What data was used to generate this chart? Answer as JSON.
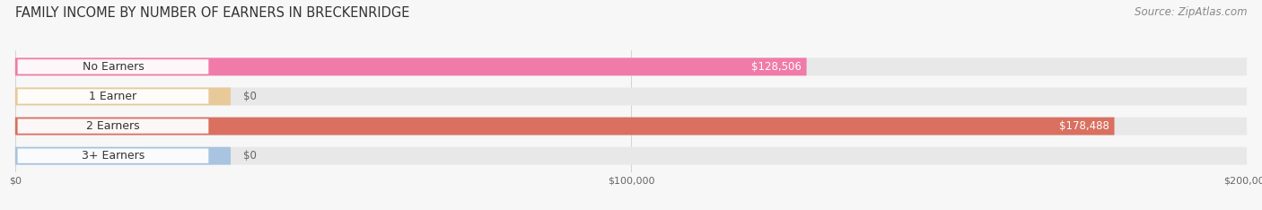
{
  "title": "FAMILY INCOME BY NUMBER OF EARNERS IN BRECKENRIDGE",
  "source": "Source: ZipAtlas.com",
  "categories": [
    "No Earners",
    "1 Earner",
    "2 Earners",
    "3+ Earners"
  ],
  "values": [
    128506,
    0,
    178488,
    0
  ],
  "bar_colors": [
    "#f07ba8",
    "#e8c99a",
    "#d97060",
    "#a8c4e0"
  ],
  "bar_track_color": "#e8e8e8",
  "value_labels": [
    "$128,506",
    "$0",
    "$178,488",
    "$0"
  ],
  "value_label_colors": [
    "#ffffff",
    "#666666",
    "#ffffff",
    "#666666"
  ],
  "xlim": [
    0,
    200000
  ],
  "xticks": [
    0,
    100000,
    200000
  ],
  "xtick_labels": [
    "$0",
    "$100,000",
    "$200,000"
  ],
  "background_color": "#f7f7f7",
  "title_fontsize": 10.5,
  "source_fontsize": 8.5,
  "label_fontsize": 9,
  "value_fontsize": 8.5,
  "bar_height": 0.6
}
